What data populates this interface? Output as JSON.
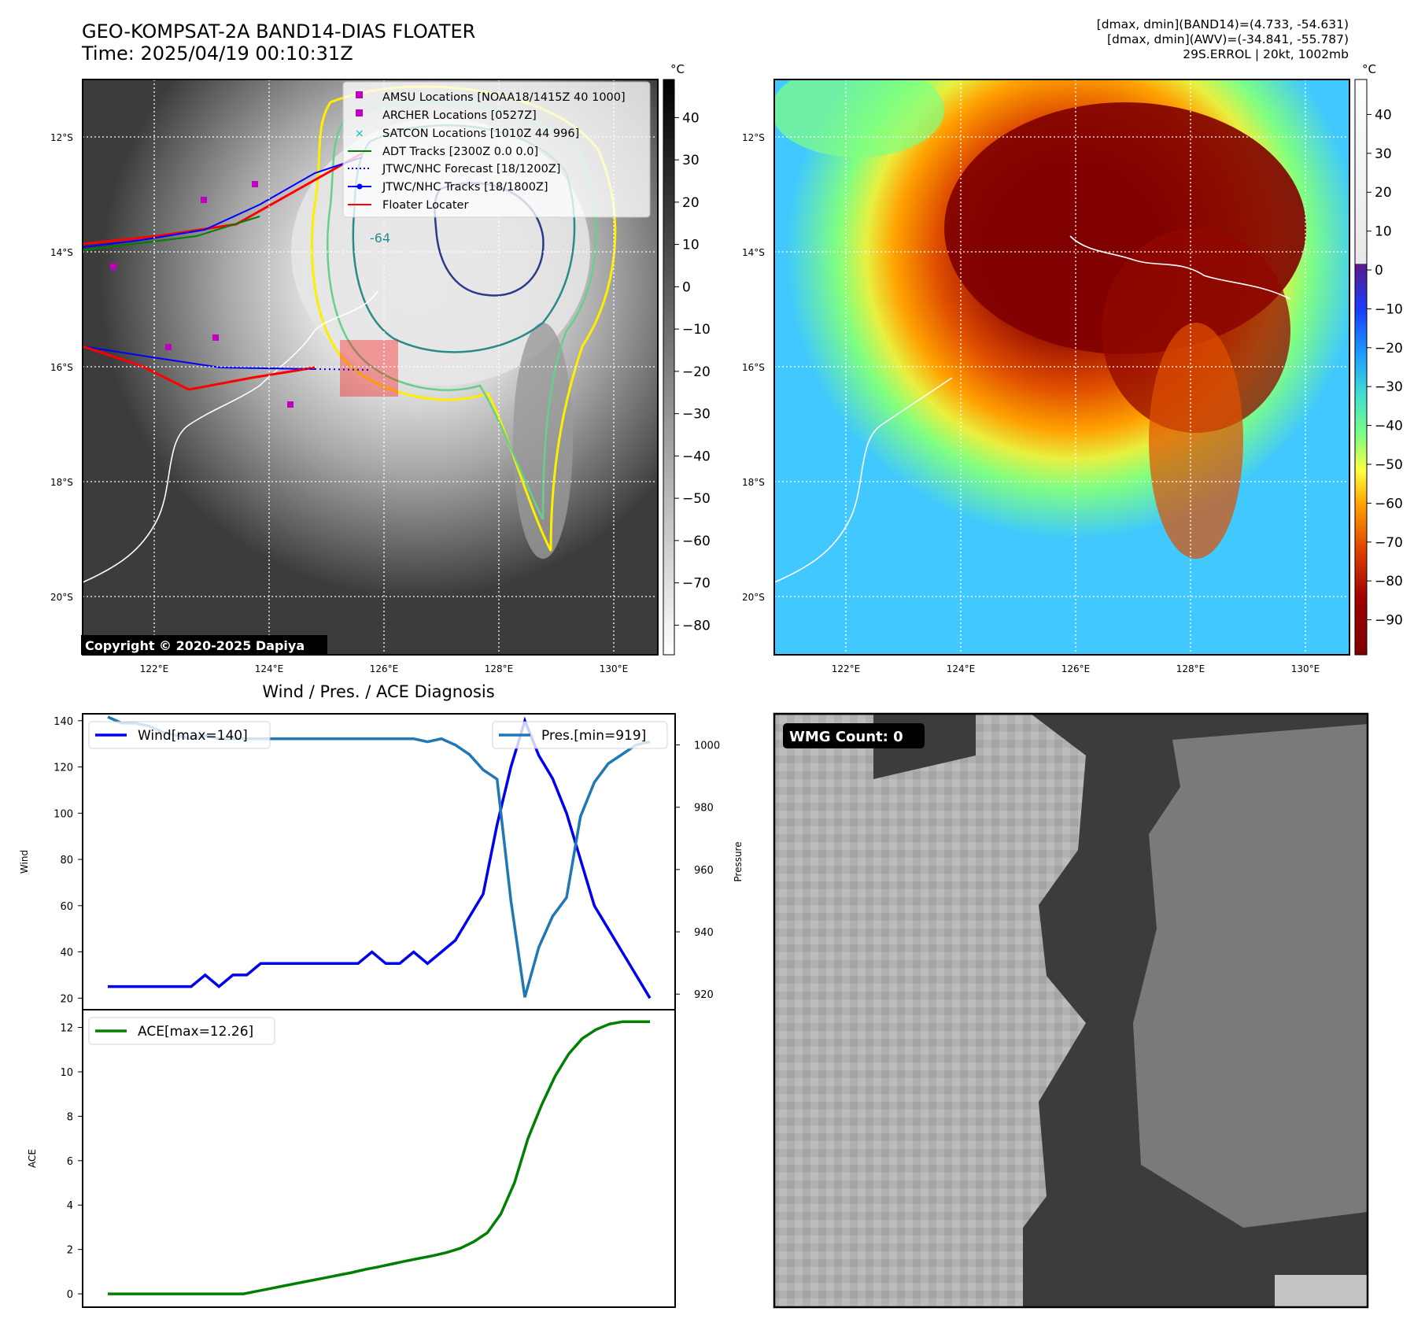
{
  "header": {
    "title_line1": "GEO-KOMPSAT-2A BAND14-DIAS FLOATER",
    "title_line2": "Time: 2025/04/19 00:10:31Z",
    "info_line1": "[dmax, dmin](BAND14)=(4.733, -54.631)",
    "info_line2": "[dmax, dmin](AWV)=(-34.841, -55.787)",
    "info_line3": "29S.ERROL | 20kt, 1002mb"
  },
  "map": {
    "lat_labels": [
      "12°S",
      "14°S",
      "16°S",
      "18°S",
      "20°S"
    ],
    "lon_labels": [
      "122°E",
      "124°E",
      "126°E",
      "128°E",
      "130°E"
    ],
    "copyright": "Copyright © 2020-2025 Dapiya",
    "contour_label": "-64",
    "legend": [
      {
        "label": "AMSU Locations [NOAA18/1415Z 40 1000]",
        "color": "#c000c0",
        "kind": "square"
      },
      {
        "label": "ARCHER Locations [0527Z]",
        "color": "#c000c0",
        "kind": "square"
      },
      {
        "label": "SATCON Locations [1010Z 44 996]",
        "color": "#00bfbf",
        "kind": "x"
      },
      {
        "label": "ADT Tracks [2300Z 0.0 0.0]",
        "color": "#008000",
        "kind": "line"
      },
      {
        "label": "JTWC/NHC Forecast [18/1200Z]",
        "color": "#0000ff",
        "kind": "dotted"
      },
      {
        "label": "JTWC/NHC Tracks [18/1800Z]",
        "color": "#0000ff",
        "kind": "line-dot"
      },
      {
        "label": "Floater Locater",
        "color": "#ff0000",
        "kind": "line"
      }
    ],
    "colorbar_gray": {
      "unit": "°C",
      "ticks": [
        40,
        30,
        20,
        10,
        0,
        -10,
        -20,
        -30,
        -40,
        -50,
        -60,
        -70,
        -80
      ]
    },
    "colorbar_color": {
      "unit": "°C",
      "ticks": [
        40,
        30,
        20,
        10,
        0,
        -10,
        -20,
        -30,
        -40,
        -50,
        -60,
        -70,
        -80,
        -90
      ]
    }
  },
  "wmg": {
    "label": "WMG Count: 0"
  },
  "chart_data": [
    {
      "type": "line",
      "title": "Wind / Pres. / ACE Diagnosis",
      "ylabel": "Wind",
      "ylabel_right": "Pressure",
      "ylim": [
        15,
        143
      ],
      "ylim_right": [
        915,
        1010
      ],
      "yticks": [
        20,
        40,
        60,
        80,
        100,
        120,
        140
      ],
      "yticks_right": [
        920,
        940,
        960,
        980,
        1000
      ],
      "series": [
        {
          "name": "Wind[max=140]",
          "color": "#0000ee",
          "axis": "left",
          "values": [
            25,
            25,
            25,
            25,
            25,
            25,
            25,
            30,
            25,
            30,
            30,
            35,
            35,
            35,
            35,
            35,
            35,
            35,
            35,
            40,
            35,
            35,
            40,
            35,
            40,
            45,
            55,
            65,
            95,
            120,
            140,
            125,
            115,
            100,
            80,
            60,
            50,
            40,
            30,
            20
          ]
        },
        {
          "name": "Pres.[min=919]",
          "color": "#1f77b4",
          "axis": "right",
          "values": [
            1009,
            1007,
            1007,
            1006,
            1004,
            1003,
            1002,
            1003,
            1002,
            1002,
            1002,
            1002,
            1002,
            1002,
            1002,
            1002,
            1002,
            1002,
            1002,
            1002,
            1002,
            1002,
            1002,
            1001,
            1002,
            1000,
            997,
            992,
            989,
            950,
            919,
            935,
            945,
            951,
            977,
            988,
            994,
            997,
            1000,
            1001
          ]
        }
      ]
    },
    {
      "type": "line",
      "ylabel": "ACE",
      "ylim": [
        -0.6,
        12.8
      ],
      "yticks": [
        0,
        2,
        4,
        6,
        8,
        10,
        12
      ],
      "series": [
        {
          "name": "ACE[max=12.26]",
          "color": "#008000",
          "values": [
            0,
            0,
            0,
            0,
            0,
            0,
            0,
            0,
            0,
            0,
            0,
            0.12,
            0.24,
            0.36,
            0.48,
            0.6,
            0.72,
            0.84,
            0.96,
            1.1,
            1.22,
            1.35,
            1.48,
            1.6,
            1.72,
            1.86,
            2.05,
            2.35,
            2.75,
            3.6,
            5.0,
            7.0,
            8.5,
            9.8,
            10.8,
            11.5,
            11.9,
            12.15,
            12.26,
            12.26,
            12.26
          ]
        }
      ]
    }
  ]
}
